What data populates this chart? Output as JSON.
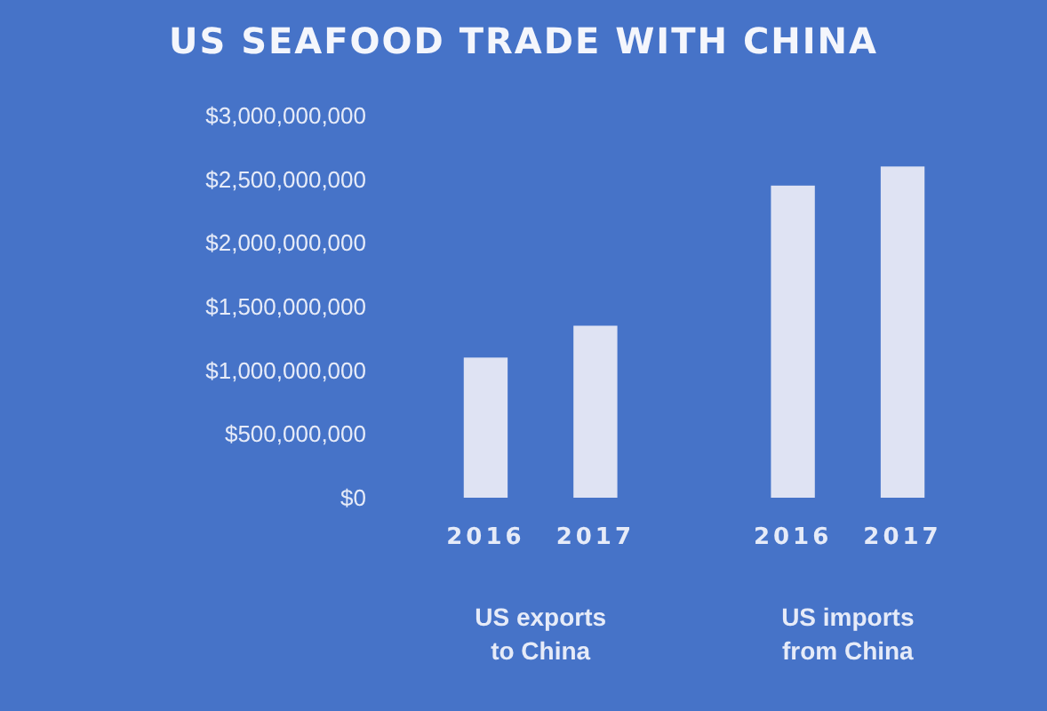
{
  "chart_data": {
    "type": "bar",
    "title": "US SEAFOOD TRADE WITH CHINA",
    "categories": [
      "US exports to China",
      "US imports from China"
    ],
    "series": [
      {
        "name": "2016",
        "color": "#dfe3f3",
        "values": [
          1100000000,
          2450000000
        ]
      },
      {
        "name": "2017",
        "color": "#dfe3f3",
        "values": [
          1350000000,
          2600000000
        ]
      }
    ],
    "ylim": [
      0,
      3000000000
    ],
    "yticks": [
      {
        "value": 0,
        "label": "$0"
      },
      {
        "value": 500000000,
        "label": "$500,000,000"
      },
      {
        "value": 1000000000,
        "label": "$1,000,000,000"
      },
      {
        "value": 1500000000,
        "label": "$1,500,000,000"
      },
      {
        "value": 2000000000,
        "label": "$2,000,000,000"
      },
      {
        "value": 2500000000,
        "label": "$2,500,000,000"
      },
      {
        "value": 3000000000,
        "label": "$3,000,000,000"
      }
    ]
  }
}
